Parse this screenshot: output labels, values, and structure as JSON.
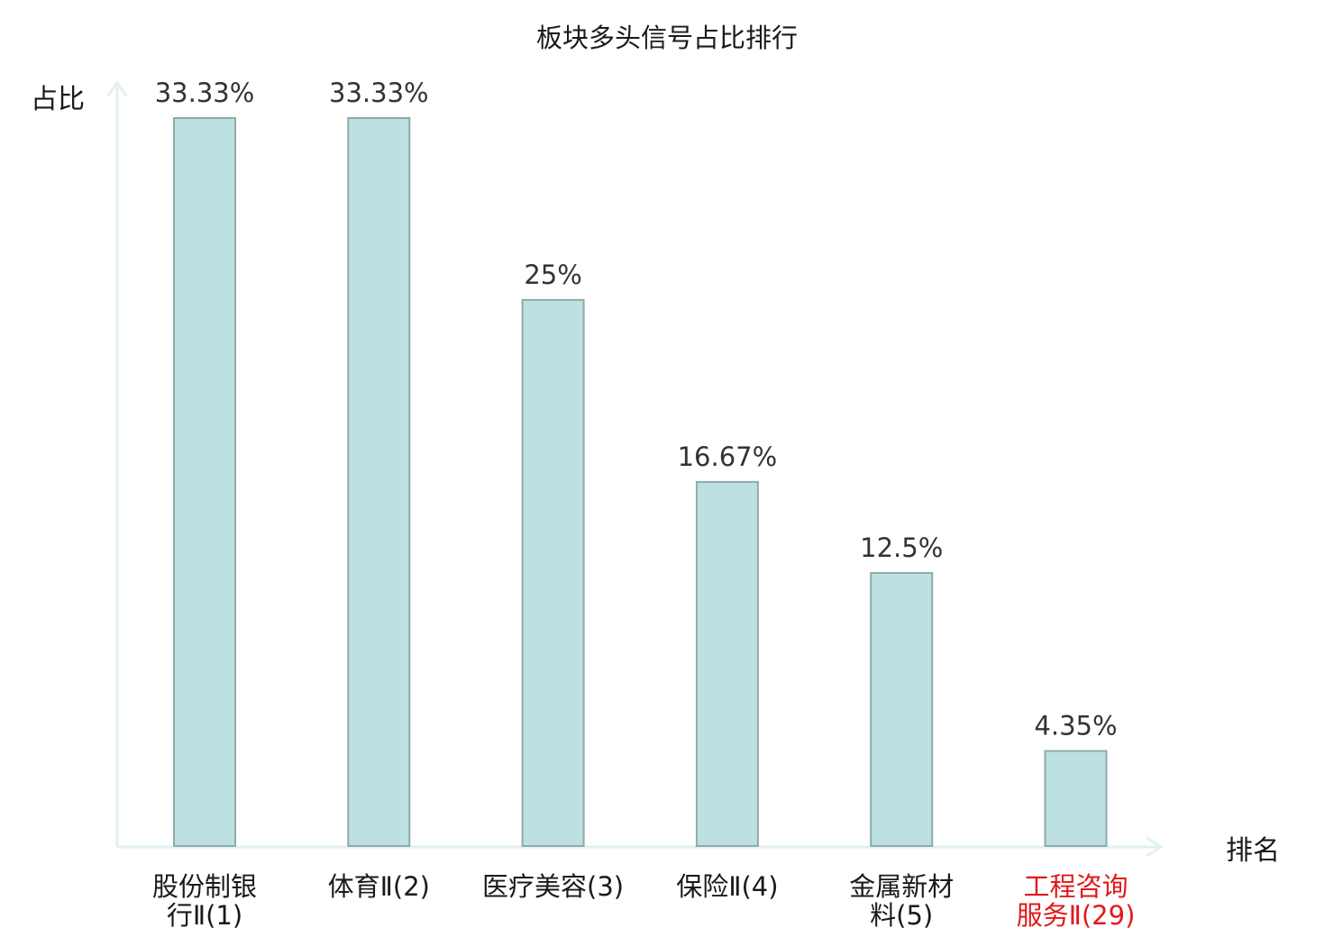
{
  "chart_data": {
    "type": "bar",
    "title": "板块多头信号占比排行",
    "ylabel": "占比",
    "xlabel": "排名",
    "categories": [
      [
        "股份制银",
        "行Ⅱ(1)"
      ],
      [
        "体育Ⅱ(2)"
      ],
      [
        "医疗美容(3)"
      ],
      [
        "保险Ⅱ(4)"
      ],
      [
        "金属新材",
        "料(5)"
      ],
      [
        "工程咨询",
        "服务Ⅱ(29)"
      ]
    ],
    "values": [
      33.33,
      33.33,
      25,
      16.67,
      12.5,
      4.35
    ],
    "value_labels": [
      "33.33%",
      "33.33%",
      "25%",
      "16.67%",
      "12.5%",
      "4.35%"
    ],
    "highlight_index": 5,
    "ylim": [
      0,
      33.33
    ],
    "grid": false,
    "colors": {
      "bar_fill": "#bde0e3",
      "bar_stroke": "#8faaa9",
      "axis": "#dff2f0",
      "label_default": "#1a1a1a",
      "label_highlight": "#e0191b"
    }
  }
}
